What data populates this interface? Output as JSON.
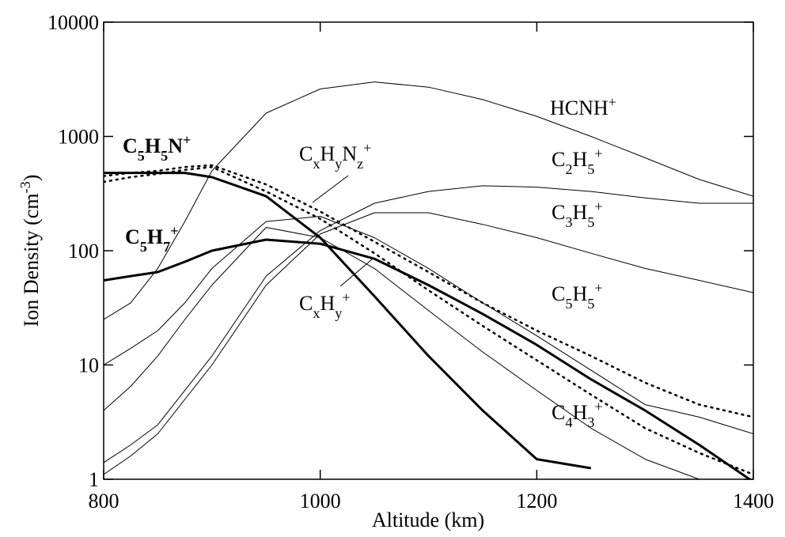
{
  "chart_data": {
    "type": "line",
    "log_y": true,
    "x_label": "Altitude (km)",
    "y_label": "Ion Density (cm-3)",
    "x": [
      800,
      825,
      850,
      875,
      900,
      950,
      1000,
      1050,
      1100,
      1150,
      1200,
      1250,
      1300,
      1350,
      1400
    ],
    "xlim": [
      800,
      1400
    ],
    "xticks": [
      800,
      1000,
      1200,
      1400
    ],
    "ylim": [
      1,
      10000
    ],
    "yticks": [
      1,
      10,
      100,
      1000,
      10000
    ],
    "series": [
      {
        "name": "HCNH+",
        "color": "#000000",
        "width": 1,
        "style": "solid",
        "values": [
          25,
          35,
          70,
          180,
          500,
          1600,
          2600,
          3000,
          2700,
          2100,
          1500,
          1000,
          650,
          420,
          300
        ]
      },
      {
        "name": "C2H5+",
        "color": "#000000",
        "width": 1,
        "style": "solid",
        "values": [
          1.4,
          2,
          3,
          6,
          12,
          60,
          150,
          260,
          330,
          370,
          360,
          330,
          290,
          260,
          260
        ]
      },
      {
        "name": "C3H5+",
        "color": "#000000",
        "width": 1,
        "style": "solid",
        "values": [
          1.1,
          1.6,
          2.5,
          5,
          10,
          50,
          140,
          215,
          215,
          170,
          130,
          95,
          70,
          55,
          43
        ]
      },
      {
        "name": "C5H5+",
        "color": "#000000",
        "width": 1,
        "style": "solid",
        "values": [
          10,
          14,
          20,
          35,
          70,
          180,
          200,
          130,
          70,
          35,
          18,
          9,
          4.5,
          3.5,
          2.5
        ]
      },
      {
        "name": "C4H3+",
        "color": "#000000",
        "width": 1,
        "style": "solid",
        "values": [
          4,
          6.5,
          12,
          25,
          50,
          160,
          130,
          70,
          30,
          13,
          6,
          2.8,
          1.5,
          1,
          null
        ]
      },
      {
        "name": "C5H5N+",
        "color": "#000000",
        "width": 3,
        "style": "solid",
        "values": [
          480,
          480,
          480,
          480,
          440,
          300,
          130,
          40,
          12,
          4,
          1.5,
          1.25,
          null,
          null,
          null
        ]
      },
      {
        "name": "C5H7+",
        "color": "#000000",
        "width": 3,
        "style": "solid",
        "values": [
          55,
          60,
          65,
          80,
          100,
          125,
          115,
          85,
          50,
          28,
          15,
          7.5,
          4,
          2,
          0.95
        ]
      },
      {
        "color": "#000000",
        "width": 2.5,
        "style": "dotted",
        "values": [
          450,
          480,
          500,
          540,
          560,
          380,
          220,
          120,
          65,
          35,
          20,
          12,
          7,
          4.5,
          3.5
        ]
      },
      {
        "color": "#000000",
        "width": 2.5,
        "style": "dotted",
        "values": [
          400,
          440,
          470,
          510,
          540,
          330,
          190,
          95,
          45,
          22,
          11,
          5.5,
          2.8,
          1.7,
          1.1
        ]
      }
    ],
    "annotations": [
      {
        "text": "CxHyNz+"
      },
      {
        "text": "CxHy+"
      }
    ]
  }
}
